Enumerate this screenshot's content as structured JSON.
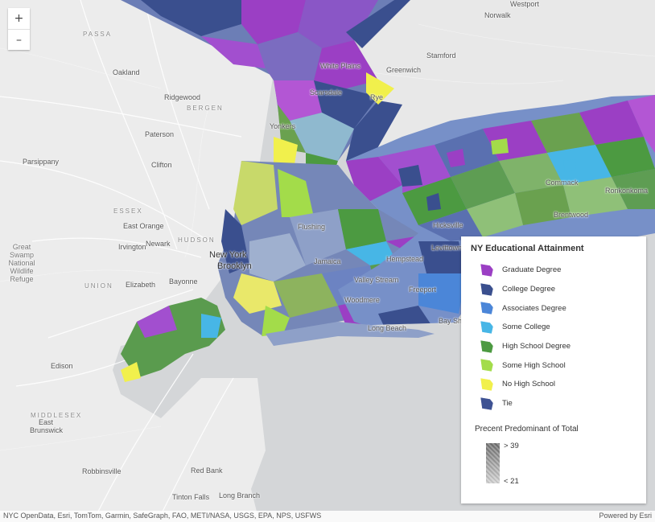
{
  "map": {
    "zoom_in": "+",
    "zoom_out": "–",
    "places": [
      "Westport",
      "Norwalk",
      "Stamford",
      "Greenwich",
      "PASSA",
      "Oakland",
      "Ridgewood",
      "BERGEN",
      "Paterson",
      "Parsippany",
      "Clifton",
      "White Plains",
      "Scarsdale",
      "Rye",
      "Yonkers",
      "Flushing",
      "Hicksville",
      "Hempstead",
      "Jamaica",
      "Valley Stream",
      "Freeport",
      "Woodmere",
      "Long Beach",
      "Brentwood",
      "Ronkonkoma",
      "Commack",
      "Levittown",
      "Bay Shore",
      "ESSEX",
      "East Orange",
      "Irvington",
      "Newark",
      "HUDSON",
      "Great Swamp National Wildlife Refuge",
      "UNION",
      "Elizabeth",
      "Bayonne",
      "New York",
      "Brooklyn",
      "Edison",
      "MIDDLESEX",
      "East Brunswick",
      "Robbinsville",
      "Red Bank",
      "Tinton Falls",
      "Long Branch"
    ]
  },
  "legend": {
    "title": "NY Educational Attainment",
    "items": [
      {
        "label": "Graduate Degree",
        "color": "#9b3fc4"
      },
      {
        "label": "College Degree",
        "color": "#3a4f8e"
      },
      {
        "label": "Associates Degree",
        "color": "#4b86d8"
      },
      {
        "label": "Some College",
        "color": "#47b6e6"
      },
      {
        "label": "High School Degree",
        "color": "#4c9a41"
      },
      {
        "label": "Some High School",
        "color": "#a3dc4a"
      },
      {
        "label": "No High School",
        "color": "#f1f04c"
      },
      {
        "label": "Tie",
        "color": "#3e5293"
      }
    ],
    "size_title": "Precent Predominant of Total",
    "ramp_high": "> 39",
    "ramp_low": "< 21"
  },
  "attribution": {
    "sources": "NYC OpenData, Esri, TomTom, Garmin, SafeGraph, FAO, METI/NASA, USGS, EPA, NPS, USFWS",
    "powered": "Powered by Esri"
  }
}
